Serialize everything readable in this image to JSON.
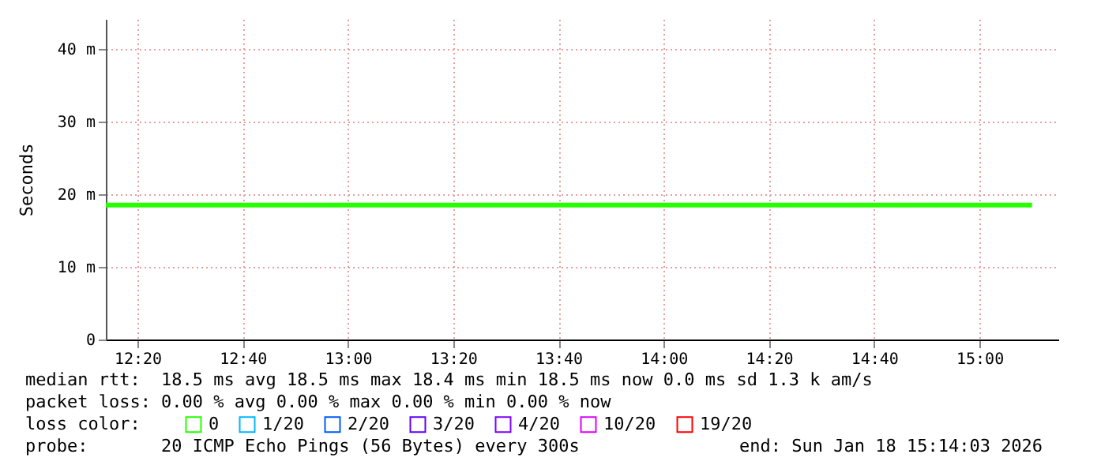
{
  "chart_data": {
    "type": "line",
    "ylabel": "Seconds",
    "x": [
      "2026-01-18T12:14",
      "2026-01-18T15:10"
    ],
    "xlim": [
      "2026-01-18T12:14",
      "2026-01-18T15:15"
    ],
    "xticks": [
      {
        "value": "2026-01-18T12:20",
        "label": "12:20"
      },
      {
        "value": "2026-01-18T12:40",
        "label": "12:40"
      },
      {
        "value": "2026-01-18T13:00",
        "label": "13:00"
      },
      {
        "value": "2026-01-18T13:20",
        "label": "13:20"
      },
      {
        "value": "2026-01-18T13:40",
        "label": "13:40"
      },
      {
        "value": "2026-01-18T14:00",
        "label": "14:00"
      },
      {
        "value": "2026-01-18T14:20",
        "label": "14:20"
      },
      {
        "value": "2026-01-18T14:40",
        "label": "14:40"
      },
      {
        "value": "2026-01-18T15:00",
        "label": "15:00"
      }
    ],
    "ylim": [
      0,
      44.1
    ],
    "yticks": [
      0,
      {
        "value": 10,
        "label": "10 m"
      },
      {
        "value": 20,
        "label": "20 m"
      },
      {
        "value": 30,
        "label": "30 m"
      },
      {
        "value": 40,
        "label": "40 m"
      }
    ],
    "series": [
      {
        "name": "0",
        "color": "#26ff00",
        "values": [
          18.5,
          18.5
        ]
      },
      {
        "name": "1/20",
        "color": "#00b8ff",
        "values": [
          null,
          null
        ]
      },
      {
        "name": "2/20",
        "color": "#0059ff",
        "values": [
          null,
          null
        ]
      },
      {
        "name": "3/20",
        "color": "#5e00ff",
        "values": [
          null,
          null
        ]
      },
      {
        "name": "4/20",
        "color": "#7e00ff",
        "values": [
          null,
          null
        ]
      },
      {
        "name": "10/20",
        "color": "#dd00ff",
        "values": [
          null,
          null
        ]
      },
      {
        "name": "19/20",
        "color": "#ff0000",
        "values": [
          null,
          null
        ]
      }
    ],
    "legend": "bottom",
    "legend_title": "loss color:",
    "grid": true,
    "annotations": [
      "median rtt:",
      "18.5 ms avg  18.5 ms max  18.4 ms min  18.5 ms now  0.0 ms sd  1.3 k am/s",
      "packet loss:",
      "0.00 % avg  0.00 % max  0.00 % min  0.00 % now",
      "probe:",
      "20 ICMP Echo Pings (56 Bytes) every 300s",
      "end: Sun Jan 18 15:14:03 2026"
    ]
  }
}
